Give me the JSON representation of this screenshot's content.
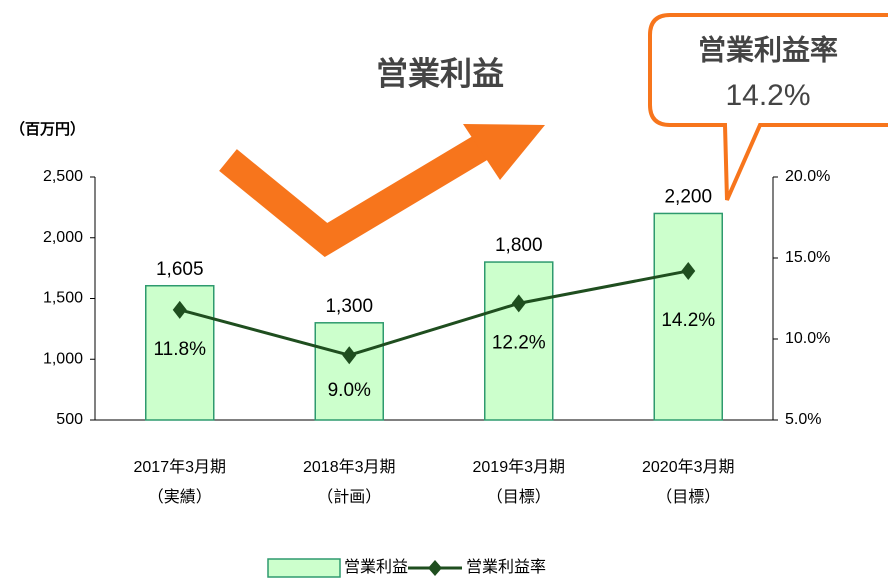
{
  "chart_data": {
    "type": "bar_line",
    "annotations": [
      "営業利益",
      "営業利益率",
      "14.2%"
    ],
    "y_axis_label": "（百万円）",
    "categories": [
      [
        "2017年3月期",
        "（実績）"
      ],
      [
        "2018年3月期",
        "（計画）"
      ],
      [
        "2019年3月期",
        "（目標）"
      ],
      [
        "2020年3月期",
        "（目標）"
      ]
    ],
    "series": [
      {
        "name": "営業利益",
        "color": "#ccffcc",
        "values": [
          1605,
          1300,
          1800,
          2200
        ],
        "value_labels": [
          "1,605",
          "1,300",
          "1,800",
          "2,200"
        ]
      },
      {
        "name": "営業利益率",
        "color": "#1f4e1f",
        "axis": "y2",
        "values": [
          11.8,
          9.0,
          12.2,
          14.2
        ],
        "value_labels": [
          "11.8%",
          "9.0%",
          "12.2%",
          "14.2%"
        ]
      }
    ],
    "ylim": [
      500,
      2500
    ],
    "yticks": [
      {
        "value": 2500,
        "label": "2,500"
      },
      {
        "value": 2000,
        "label": "2,000"
      },
      {
        "value": 1500,
        "label": "1,500"
      },
      {
        "value": 1000,
        "label": "1,000"
      },
      500
    ],
    "y2lim": [
      5,
      20
    ],
    "y2ticks": [
      {
        "value": 20,
        "label": "20.0%"
      },
      {
        "value": 15,
        "label": "15.0%"
      },
      {
        "value": 10,
        "label": "10.0%"
      },
      {
        "value": 5,
        "label": "5.0%"
      }
    ],
    "grid": false
  }
}
